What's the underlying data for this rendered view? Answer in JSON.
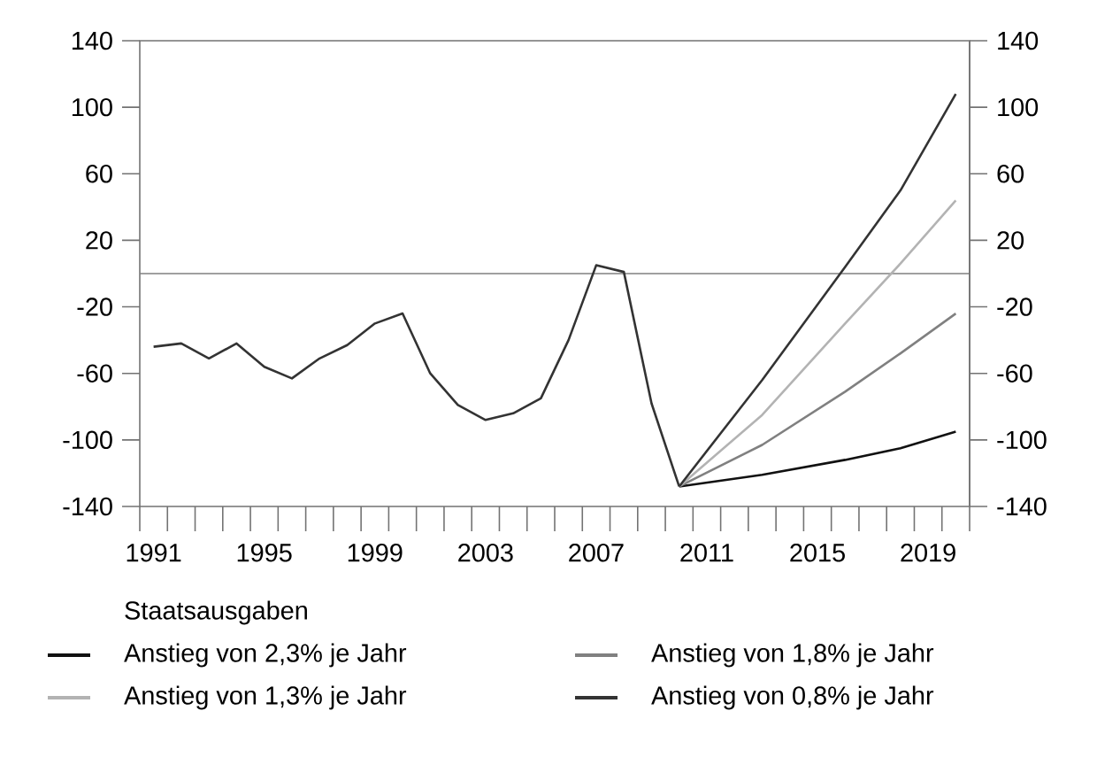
{
  "chart_data": {
    "type": "line",
    "legend_title": "Staatsausgaben",
    "xlim": [
      1990.5,
      2020.5
    ],
    "xticks": [
      {
        "value": 1991,
        "label": "1991"
      },
      {
        "value": 1995,
        "label": "1995"
      },
      {
        "value": 1999,
        "label": "1999"
      },
      {
        "value": 2003,
        "label": "2003"
      },
      {
        "value": 2007,
        "label": "2007"
      },
      {
        "value": 2011,
        "label": "2011"
      },
      {
        "value": 2015,
        "label": "2015"
      },
      {
        "value": 2019,
        "label": "2019"
      },
      {
        "value": 1990.5,
        "label": null
      },
      {
        "value": 1991.5,
        "label": null
      },
      {
        "value": 1992.5,
        "label": null
      },
      {
        "value": 1993.5,
        "label": null
      },
      {
        "value": 1994.5,
        "label": null
      },
      {
        "value": 1995.5,
        "label": null
      },
      {
        "value": 1996.5,
        "label": null
      },
      {
        "value": 1997.5,
        "label": null
      },
      {
        "value": 1998.5,
        "label": null
      },
      {
        "value": 1999.5,
        "label": null
      },
      {
        "value": 2000.5,
        "label": null
      },
      {
        "value": 2001.5,
        "label": null
      },
      {
        "value": 2002.5,
        "label": null
      },
      {
        "value": 2003.5,
        "label": null
      },
      {
        "value": 2004.5,
        "label": null
      },
      {
        "value": 2005.5,
        "label": null
      },
      {
        "value": 2006.5,
        "label": null
      },
      {
        "value": 2007.5,
        "label": null
      },
      {
        "value": 2008.5,
        "label": null
      },
      {
        "value": 2009.5,
        "label": null
      },
      {
        "value": 2010.5,
        "label": null
      },
      {
        "value": 2011.5,
        "label": null
      },
      {
        "value": 2012.5,
        "label": null
      },
      {
        "value": 2013.5,
        "label": null
      },
      {
        "value": 2014.5,
        "label": null
      },
      {
        "value": 2015.5,
        "label": null
      },
      {
        "value": 2016.5,
        "label": null
      },
      {
        "value": 2017.5,
        "label": null
      },
      {
        "value": 2018.5,
        "label": null
      },
      {
        "value": 2019.5,
        "label": null
      },
      {
        "value": 2020.5,
        "label": null
      }
    ],
    "ylim": [
      -140,
      140
    ],
    "yticks": [
      -140,
      -100,
      -60,
      -20,
      20,
      60,
      100,
      140
    ],
    "y2lim": [
      -140,
      140
    ],
    "y2ticks": [
      -140,
      -100,
      -60,
      -20,
      20,
      60,
      100,
      140
    ],
    "ref_lines": [
      {
        "axis": "y",
        "value": 0,
        "color": "#808080"
      }
    ],
    "grid": false,
    "legend": "bottom",
    "marker": "none",
    "line_style": "solid",
    "series": [
      {
        "color": "#333333",
        "x": [
          1991,
          1992,
          1993,
          1994,
          1995,
          1996,
          1997,
          1998,
          1999,
          2000,
          2001,
          2002,
          2003,
          2004,
          2005,
          2006,
          2007,
          2008,
          2009,
          2010
        ],
        "values": [
          -44,
          -42,
          -51,
          -42,
          -56,
          -63,
          -51,
          -43,
          -30,
          -24,
          -60,
          -79,
          -88,
          -84,
          -75,
          -40,
          5,
          1,
          -78,
          -128
        ]
      },
      {
        "name": "Anstieg von 2,3% je Jahr",
        "color": "#111111",
        "x": [
          2010,
          2013,
          2016,
          2018,
          2020
        ],
        "values": [
          -128,
          -121,
          -112,
          -105,
          -95
        ]
      },
      {
        "name": "Anstieg von 1,8% je Jahr",
        "color": "#808080",
        "x": [
          2010,
          2013,
          2016,
          2018,
          2020
        ],
        "values": [
          -128,
          -103,
          -71,
          -48,
          -24
        ]
      },
      {
        "name": "Anstieg von 1,3% je Jahr",
        "color": "#b3b3b3",
        "x": [
          2010,
          2013,
          2016,
          2018,
          2020
        ],
        "values": [
          -128,
          -85,
          -30,
          6,
          44
        ]
      },
      {
        "name": "Anstieg von 0,8% je Jahr",
        "color": "#333333",
        "x": [
          2010,
          2013,
          2016,
          2018,
          2020
        ],
        "values": [
          -128,
          -64,
          4,
          50,
          108
        ]
      }
    ]
  }
}
